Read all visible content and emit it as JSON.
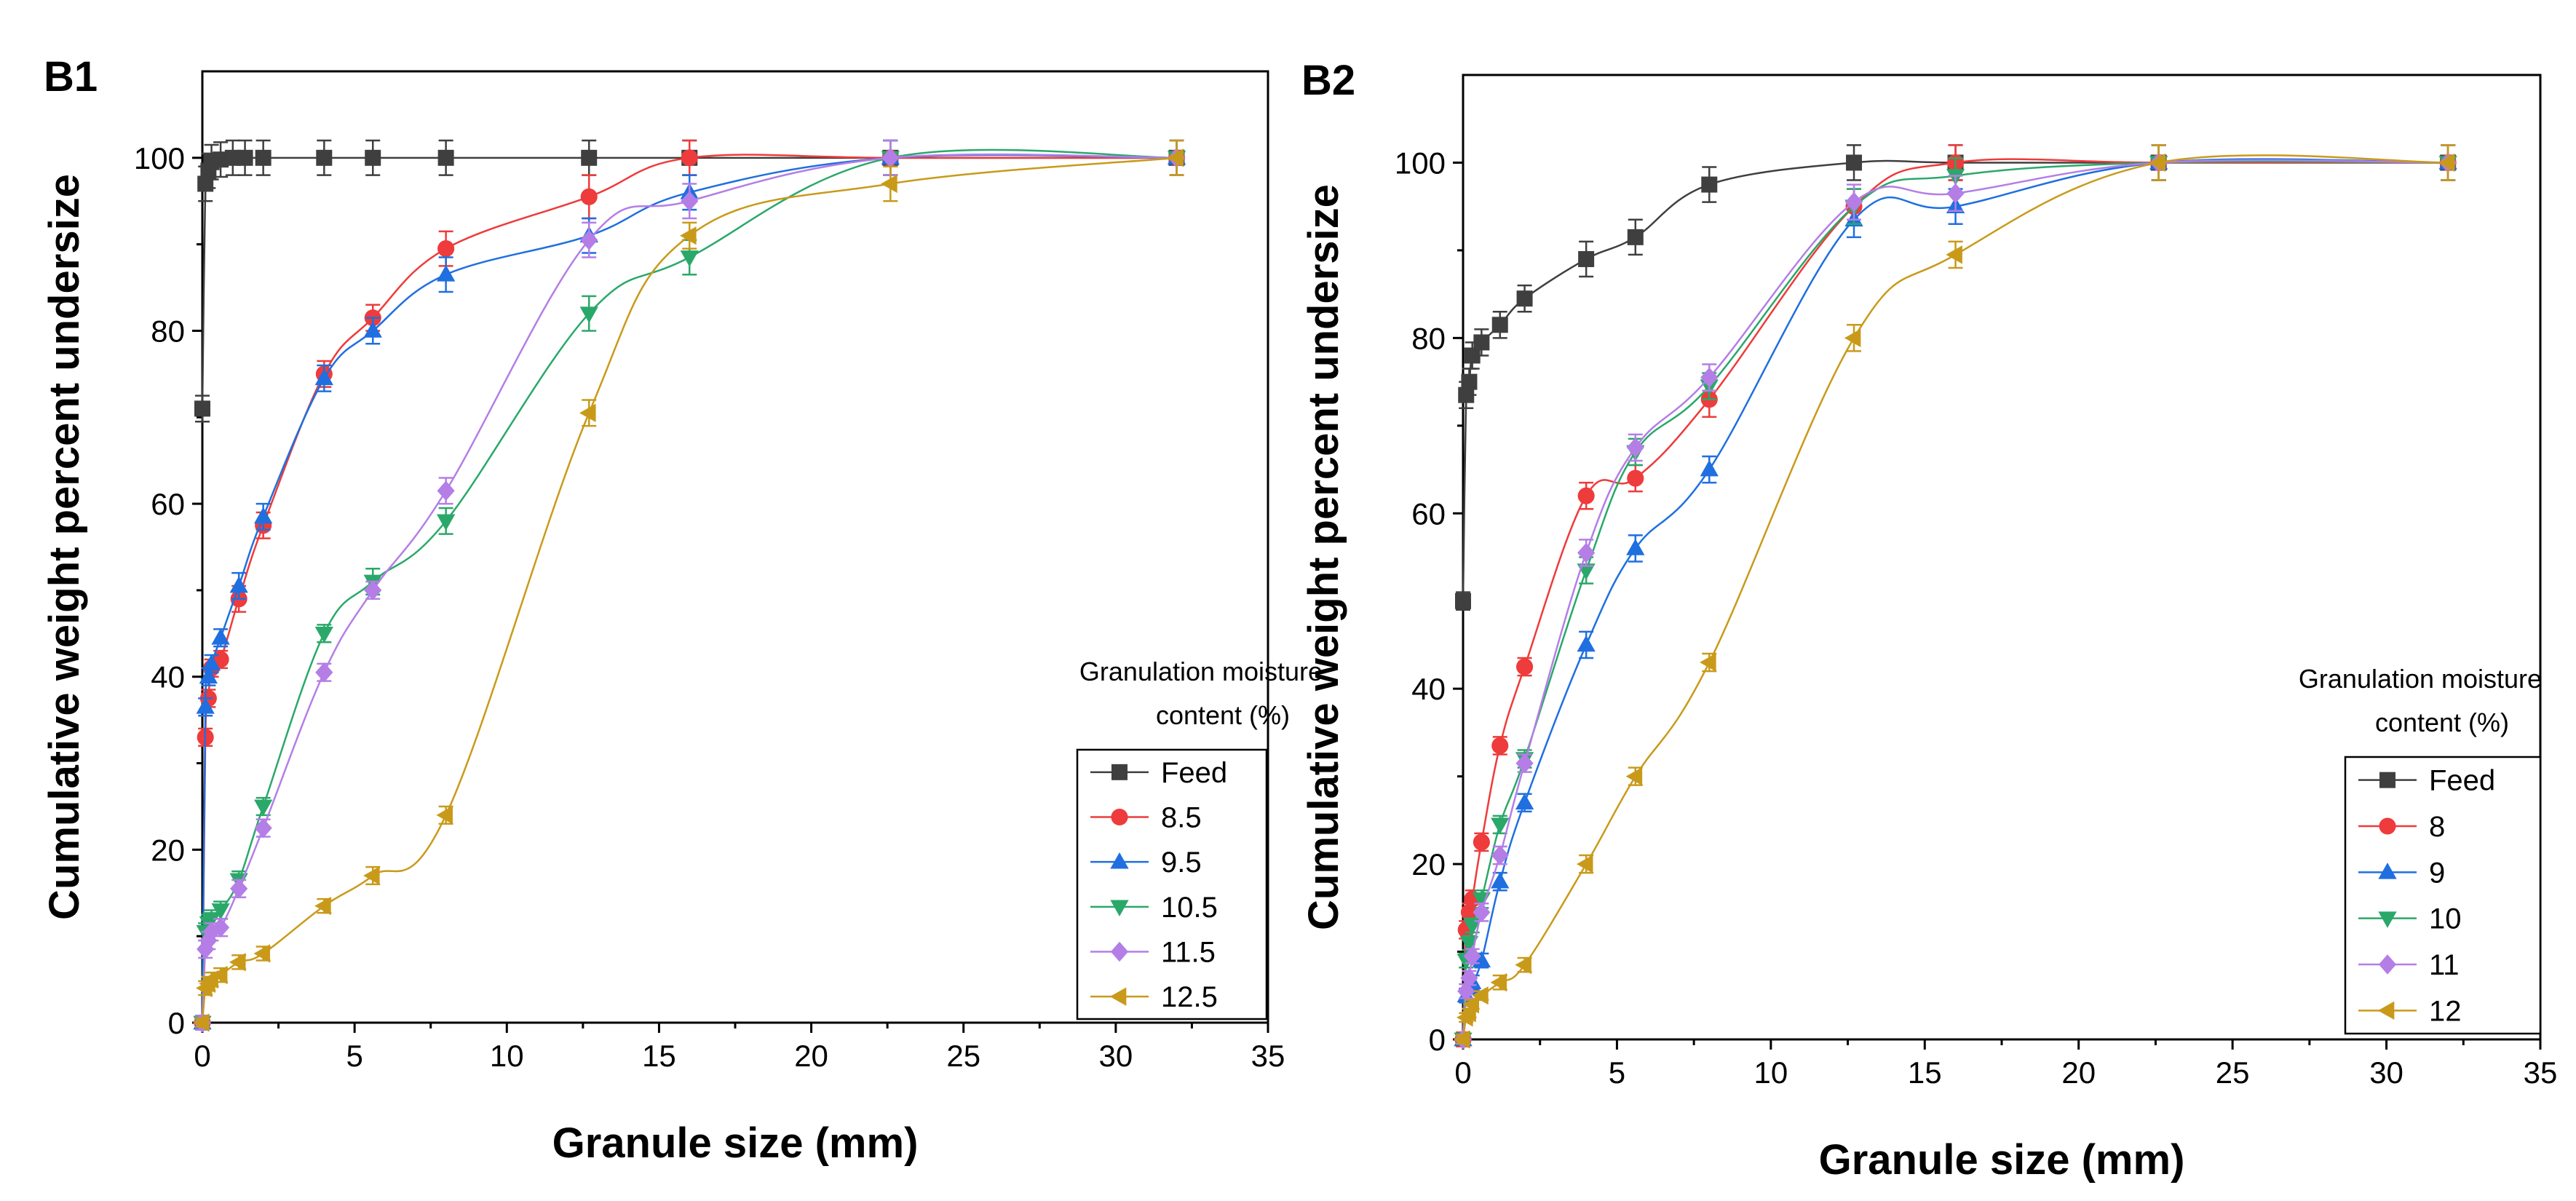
{
  "chart_data": [
    {
      "type": "line",
      "panel_label": "B1",
      "xlabel": "Granule size (mm)",
      "ylabel": "Cumulative weight percent undersize",
      "xlim": [
        0,
        35
      ],
      "ylim": [
        0,
        110
      ],
      "xticks": [
        0,
        5,
        10,
        15,
        20,
        25,
        30,
        35
      ],
      "yticks": [
        0,
        20,
        40,
        60,
        80,
        100
      ],
      "legend_title_line1": "Granulation moisture",
      "legend_title_line2": "content (%)",
      "legend_position": "bottom-right",
      "grid": false,
      "series": [
        {
          "name": "Feed",
          "color": "#3f3f3f",
          "marker": "square",
          "x": [
            0.0,
            0.1,
            0.2,
            0.3,
            0.6,
            1.0,
            1.4,
            2.0,
            4.0,
            5.6,
            8.0,
            12.7,
            16.0,
            22.6,
            32.0
          ],
          "y": [
            71.0,
            97.0,
            98.5,
            99.5,
            99.8,
            100,
            100,
            100,
            100,
            100,
            100,
            100,
            100,
            100,
            100
          ],
          "err": [
            1.5,
            2,
            2,
            2,
            2,
            2,
            2,
            2,
            2,
            2,
            2,
            2,
            2,
            2,
            2
          ]
        },
        {
          "name": "8.5",
          "color": "#ee3b3b",
          "marker": "circle",
          "x": [
            0.0,
            0.1,
            0.2,
            0.3,
            0.6,
            1.2,
            2.0,
            4.0,
            5.6,
            8.0,
            12.7,
            16.0,
            22.6,
            32.0
          ],
          "y": [
            0,
            33.0,
            37.5,
            41.0,
            42.0,
            49.0,
            57.5,
            75.0,
            81.5,
            89.5,
            95.5,
            100,
            100,
            100
          ],
          "err": [
            0.8,
            1,
            1,
            1,
            1,
            1.5,
            1.5,
            1.5,
            1.5,
            2,
            2.5,
            2,
            2,
            2
          ]
        },
        {
          "name": "9.5",
          "color": "#1f6fe0",
          "marker": "triangle-up",
          "x": [
            0.0,
            0.1,
            0.2,
            0.3,
            0.6,
            1.2,
            2.0,
            4.0,
            5.6,
            8.0,
            12.7,
            16.0,
            22.6,
            32.0
          ],
          "y": [
            0,
            36.5,
            40.0,
            41.5,
            44.5,
            50.5,
            58.5,
            74.5,
            80.0,
            86.5,
            91.0,
            96.0,
            100,
            100
          ],
          "err": [
            0.8,
            1,
            1,
            1,
            1,
            1.5,
            1.5,
            1.5,
            1.5,
            2,
            2,
            2,
            2,
            2
          ]
        },
        {
          "name": "10.5",
          "color": "#2aa86a",
          "marker": "triangle-down",
          "x": [
            0.0,
            0.1,
            0.2,
            0.3,
            0.6,
            1.2,
            2.0,
            4.0,
            5.6,
            8.0,
            12.7,
            16.0,
            22.6,
            32.0
          ],
          "y": [
            0,
            10.5,
            11.5,
            12.0,
            13.0,
            16.5,
            25.0,
            45.0,
            51.0,
            58.0,
            82.0,
            88.5,
            100,
            100
          ],
          "err": [
            0.8,
            1,
            1,
            1,
            1,
            1,
            1,
            1,
            1.5,
            1.5,
            2,
            2,
            2,
            2
          ]
        },
        {
          "name": "11.5",
          "color": "#b47ee6",
          "marker": "diamond",
          "x": [
            0.0,
            0.1,
            0.2,
            0.3,
            0.6,
            1.2,
            2.0,
            4.0,
            5.6,
            8.0,
            12.7,
            16.0,
            22.6,
            32.0
          ],
          "y": [
            0,
            8.5,
            9.5,
            10.5,
            11.0,
            15.5,
            22.5,
            40.5,
            50.0,
            61.5,
            90.5,
            95.0,
            100,
            100
          ],
          "err": [
            0.8,
            1,
            1,
            1,
            1,
            1,
            1,
            1,
            1,
            1.5,
            2,
            2,
            2,
            2
          ]
        },
        {
          "name": "12.5",
          "color": "#c99a1a",
          "marker": "triangle-left",
          "x": [
            0.0,
            0.1,
            0.2,
            0.3,
            0.6,
            1.2,
            2.0,
            4.0,
            5.6,
            8.0,
            12.7,
            16.0,
            22.6,
            32.0
          ],
          "y": [
            0,
            4.0,
            4.5,
            5.0,
            5.5,
            7.0,
            8.0,
            13.5,
            17.0,
            24.0,
            70.5,
            91.0,
            97.0,
            100
          ],
          "err": [
            0.5,
            0.8,
            0.8,
            0.8,
            0.8,
            0.8,
            0.8,
            0.8,
            1,
            1,
            1.5,
            1.5,
            2,
            2
          ]
        }
      ]
    },
    {
      "type": "line",
      "panel_label": "B2",
      "xlabel": "Granule size (mm)",
      "ylabel": "Cumulative weight percent undersize",
      "xlim": [
        0,
        35
      ],
      "ylim": [
        0,
        110
      ],
      "xticks": [
        0,
        5,
        10,
        15,
        20,
        25,
        30,
        35
      ],
      "yticks": [
        0,
        20,
        40,
        60,
        80,
        100
      ],
      "legend_title_line1": "Granulation moisture",
      "legend_title_line2": "content (%)",
      "legend_position": "bottom-right",
      "grid": false,
      "series": [
        {
          "name": "Feed",
          "color": "#3f3f3f",
          "marker": "square",
          "x": [
            0.0,
            0.1,
            0.2,
            0.3,
            0.6,
            1.2,
            2.0,
            4.0,
            5.6,
            8.0,
            12.7,
            16.0,
            22.6,
            32.0
          ],
          "y": [
            50.0,
            73.5,
            75.0,
            78.0,
            79.5,
            81.5,
            84.5,
            89.0,
            91.5,
            97.5,
            100,
            100,
            100,
            100
          ],
          "err": [
            1,
            1.5,
            1.5,
            1.5,
            1.5,
            1.5,
            1.5,
            2,
            2,
            2,
            2,
            2,
            2,
            2
          ]
        },
        {
          "name": "8",
          "color": "#ee3b3b",
          "marker": "circle",
          "x": [
            0.0,
            0.1,
            0.2,
            0.3,
            0.6,
            1.2,
            2.0,
            4.0,
            5.6,
            8.0,
            12.7,
            16.0,
            22.6,
            32.0
          ],
          "y": [
            0,
            12.5,
            14.5,
            16.0,
            22.5,
            33.5,
            42.5,
            62.0,
            64.0,
            73.0,
            95.0,
            100,
            100,
            100
          ],
          "err": [
            0.8,
            1,
            1,
            1,
            1,
            1,
            1,
            1.5,
            1.5,
            2,
            2,
            2,
            2,
            2
          ]
        },
        {
          "name": "9",
          "color": "#1f6fe0",
          "marker": "triangle-up",
          "x": [
            0.0,
            0.1,
            0.2,
            0.3,
            0.6,
            1.2,
            2.0,
            4.0,
            5.6,
            8.0,
            12.7,
            16.0,
            22.6,
            32.0
          ],
          "y": [
            0,
            5.0,
            6.0,
            6.5,
            9.0,
            18.0,
            27.0,
            45.0,
            56.0,
            65.0,
            93.5,
            95.0,
            100,
            100
          ],
          "err": [
            0.5,
            0.8,
            0.8,
            0.8,
            0.8,
            1,
            1,
            1.5,
            1.5,
            1.5,
            2,
            2,
            2,
            2
          ]
        },
        {
          "name": "10",
          "color": "#2aa86a",
          "marker": "triangle-down",
          "x": [
            0.0,
            0.1,
            0.2,
            0.3,
            0.6,
            1.2,
            2.0,
            4.0,
            5.6,
            8.0,
            12.7,
            16.0,
            22.6,
            32.0
          ],
          "y": [
            0,
            9.0,
            11.0,
            13.0,
            16.0,
            24.5,
            32.0,
            53.5,
            67.0,
            74.5,
            95.0,
            98.5,
            100,
            100
          ],
          "err": [
            0.5,
            0.8,
            0.8,
            0.8,
            1,
            1,
            1,
            1.5,
            1.5,
            1.5,
            2,
            2,
            2,
            2
          ]
        },
        {
          "name": "11",
          "color": "#b47ee6",
          "marker": "diamond",
          "x": [
            0.0,
            0.1,
            0.2,
            0.3,
            0.6,
            1.2,
            2.0,
            4.0,
            5.6,
            8.0,
            12.7,
            16.0,
            22.6,
            32.0
          ],
          "y": [
            0,
            5.5,
            7.0,
            9.5,
            14.5,
            21.0,
            31.5,
            55.5,
            67.5,
            75.5,
            95.5,
            96.5,
            100,
            100
          ],
          "err": [
            0.5,
            0.8,
            0.8,
            0.8,
            1,
            1,
            1,
            1.5,
            1.5,
            1.5,
            2,
            2,
            2,
            2
          ]
        },
        {
          "name": "12",
          "color": "#c99a1a",
          "marker": "triangle-left",
          "x": [
            0.0,
            0.1,
            0.2,
            0.3,
            0.6,
            1.2,
            2.0,
            4.0,
            5.6,
            8.0,
            12.7,
            16.0,
            22.6,
            32.0
          ],
          "y": [
            0,
            2.5,
            3.0,
            4.0,
            5.0,
            6.5,
            8.5,
            20.0,
            30.0,
            43.0,
            80.0,
            89.5,
            100,
            100
          ],
          "err": [
            0.5,
            0.5,
            0.5,
            0.5,
            0.5,
            0.8,
            0.8,
            1,
            1,
            1,
            1.5,
            1.5,
            2,
            2
          ]
        }
      ]
    }
  ]
}
